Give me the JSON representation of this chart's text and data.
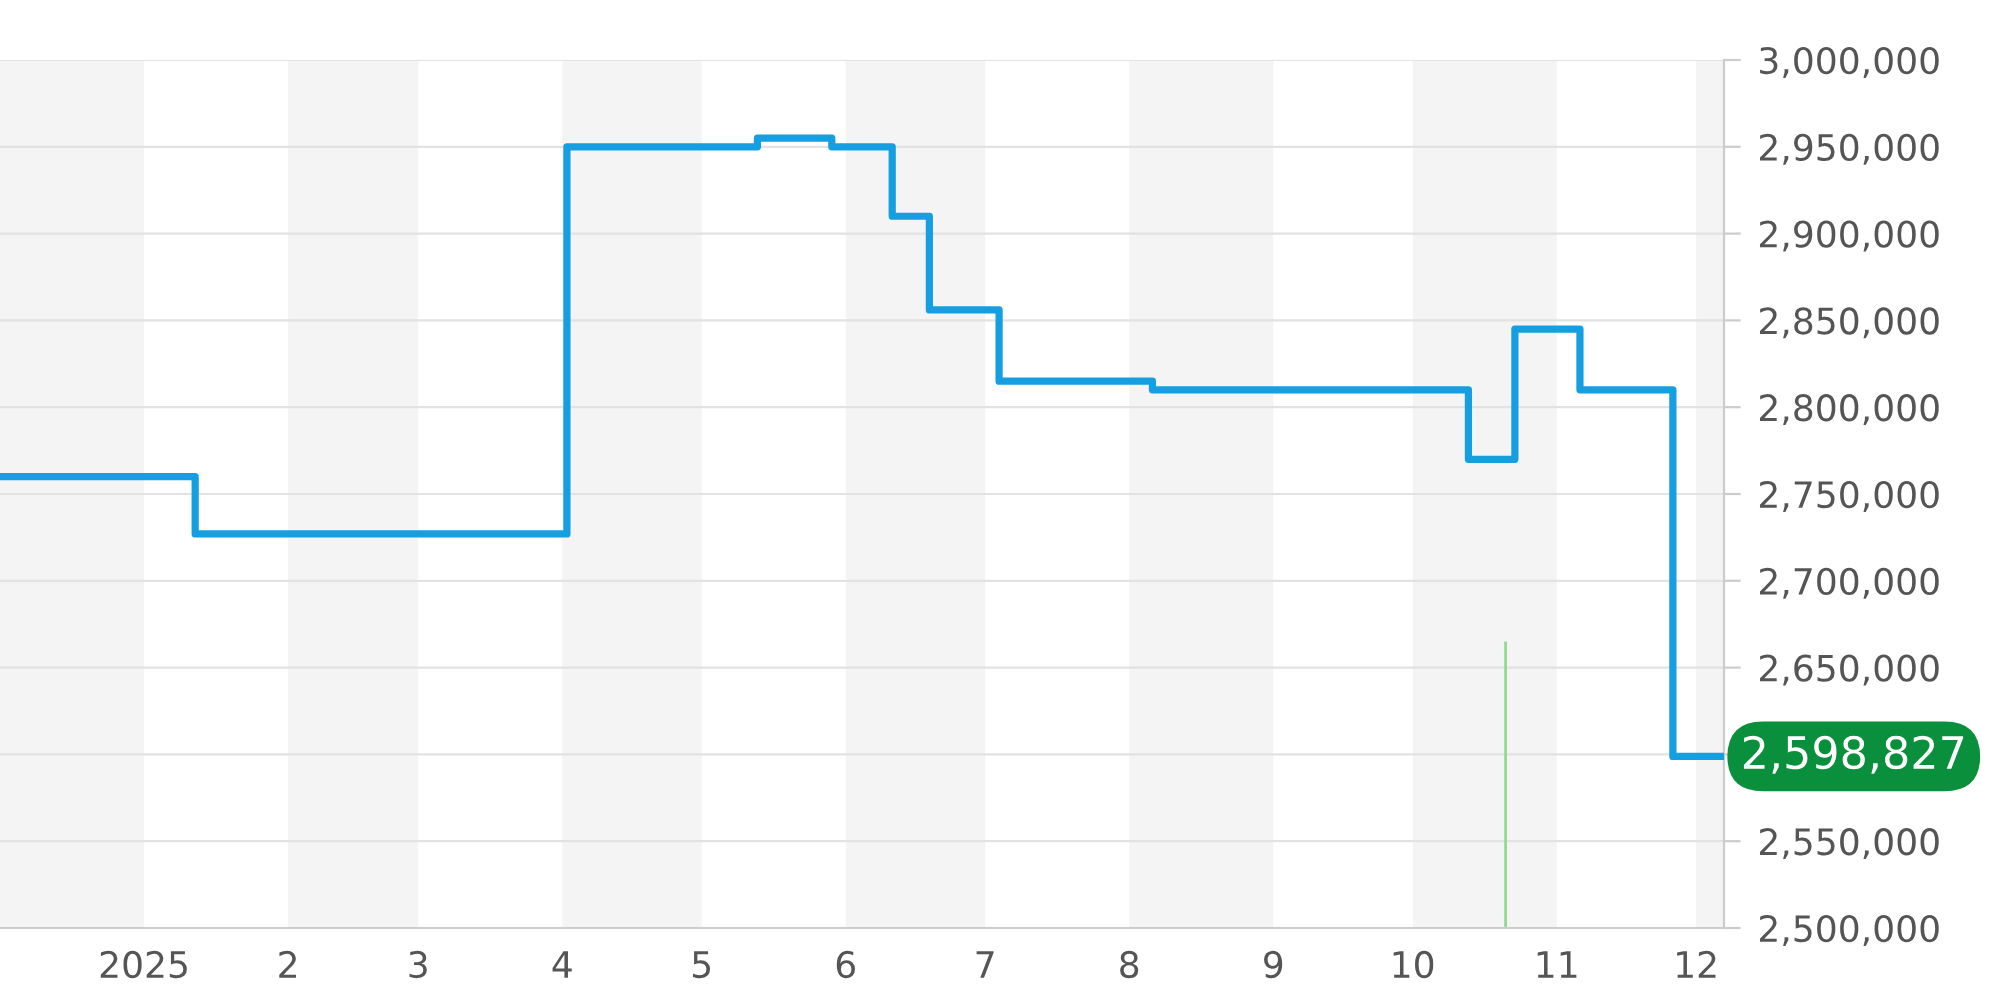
{
  "chart_data": {
    "type": "step",
    "series": [
      {
        "color": "#159fe0",
        "x": [
          "2024-12-01",
          "2025-01-12",
          "2025-04-02",
          "2025-05-13",
          "2025-05-29",
          "2025-06-11",
          "2025-06-19",
          "2025-07-04",
          "2025-08-06",
          "2025-10-13",
          "2025-10-23",
          "2025-11-06",
          "2025-11-26",
          "2025-12-07"
        ],
        "values": [
          2760000,
          2727000,
          2950000,
          2955000,
          2950000,
          2910000,
          2856000,
          2815000,
          2810000,
          2770000,
          2845000,
          2810000,
          2598827,
          2598827
        ]
      },
      {
        "type": "bar",
        "color": "#8fdc8f",
        "x": [
          "2025-10-21"
        ],
        "values": [
          2665000
        ]
      }
    ],
    "xlim": [
      "2024-12-01",
      "2025-12-07"
    ],
    "xticks": [
      {
        "value": "2025-01-01",
        "label": "2025"
      },
      {
        "value": "2025-02-01",
        "label": "2"
      },
      {
        "value": "2025-03-01",
        "label": "3"
      },
      {
        "value": "2025-04-01",
        "label": "4"
      },
      {
        "value": "2025-05-01",
        "label": "5"
      },
      {
        "value": "2025-06-01",
        "label": "6"
      },
      {
        "value": "2025-07-01",
        "label": "7"
      },
      {
        "value": "2025-08-01",
        "label": "8"
      },
      {
        "value": "2025-09-01",
        "label": "9"
      },
      {
        "value": "2025-10-01",
        "label": "10"
      },
      {
        "value": "2025-11-01",
        "label": "11"
      },
      {
        "value": "2025-12-01",
        "label": "12"
      }
    ],
    "ylim": [
      2500000,
      3000000
    ],
    "yticks": [
      {
        "value": 2500000,
        "label": "2,500,000"
      },
      {
        "value": 2550000,
        "label": "2,550,000"
      },
      {
        "value": 2600000,
        "label": null
      },
      {
        "value": 2650000,
        "label": "2,650,000"
      },
      {
        "value": 2700000,
        "label": "2,700,000"
      },
      {
        "value": 2750000,
        "label": "2,750,000"
      },
      {
        "value": 2800000,
        "label": "2,800,000"
      },
      {
        "value": 2850000,
        "label": "2,850,000"
      },
      {
        "value": 2900000,
        "label": "2,900,000"
      },
      {
        "value": 2950000,
        "label": "2,950,000"
      },
      {
        "value": 3000000,
        "label": "3,000,000"
      }
    ],
    "bands": [
      {
        "axis": "x",
        "from": "2024-12-01",
        "to": "2025-01-01",
        "color": "#f4f4f4"
      },
      {
        "axis": "x",
        "from": "2025-02-01",
        "to": "2025-03-01",
        "color": "#f4f4f4"
      },
      {
        "axis": "x",
        "from": "2025-04-01",
        "to": "2025-05-01",
        "color": "#f4f4f4"
      },
      {
        "axis": "x",
        "from": "2025-06-01",
        "to": "2025-07-01",
        "color": "#f4f4f4"
      },
      {
        "axis": "x",
        "from": "2025-08-01",
        "to": "2025-09-01",
        "color": "#f4f4f4"
      },
      {
        "axis": "x",
        "from": "2025-10-01",
        "to": "2025-11-01",
        "color": "#f4f4f4"
      },
      {
        "axis": "x",
        "from": "2025-12-01",
        "to": "2025-12-07",
        "color": "#f4f4f4"
      }
    ],
    "annotations": [
      {
        "text": "2,598,827",
        "x": "2025-12-07",
        "y": 2598827
      }
    ],
    "grid": "y",
    "legend": false,
    "marker": "none",
    "line_style": "solid"
  }
}
